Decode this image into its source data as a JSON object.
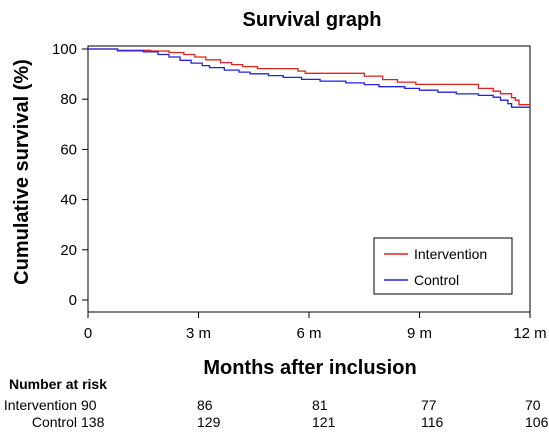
{
  "chart_data": {
    "type": "line",
    "title": "Survival graph",
    "xlabel": "Months after inclusion",
    "ylabel": "Cumulative survival (%)",
    "xlim": [
      0,
      12
    ],
    "ylim": [
      0,
      100
    ],
    "x_ticks": [
      0,
      3,
      6,
      9,
      12
    ],
    "x_tick_labels": [
      "0",
      "3 m",
      "6 m",
      "9 m",
      "12 m"
    ],
    "y_ticks": [
      0,
      20,
      40,
      60,
      80,
      100
    ],
    "y_tick_labels": [
      "0",
      "20",
      "40",
      "60",
      "80",
      "100"
    ],
    "grid": false,
    "legend_position": "bottom-right",
    "step": true,
    "series": [
      {
        "name": "Intervention",
        "color": "#dd2222",
        "points": [
          [
            0,
            100
          ],
          [
            0.7,
            100
          ],
          [
            0.8,
            99.5
          ],
          [
            1.7,
            99.2
          ],
          [
            2.2,
            98.6
          ],
          [
            2.6,
            97.8
          ],
          [
            2.9,
            96.8
          ],
          [
            3.2,
            95.7
          ],
          [
            3.6,
            94.6
          ],
          [
            3.9,
            93.8
          ],
          [
            4.2,
            93.0
          ],
          [
            4.6,
            92.2
          ],
          [
            5.7,
            91.2
          ],
          [
            5.9,
            90.3
          ],
          [
            7.5,
            89.2
          ],
          [
            8.0,
            87.8
          ],
          [
            8.4,
            86.8
          ],
          [
            8.9,
            85.9
          ],
          [
            10.6,
            84.3
          ],
          [
            11.0,
            83.2
          ],
          [
            11.2,
            82.2
          ],
          [
            11.5,
            80.6
          ],
          [
            11.6,
            79.6
          ],
          [
            11.7,
            77.8
          ],
          [
            12,
            77.8
          ]
        ]
      },
      {
        "name": "Control",
        "color": "#2222dd",
        "points": [
          [
            0,
            100
          ],
          [
            0.6,
            100
          ],
          [
            0.8,
            99.3
          ],
          [
            1.5,
            98.9
          ],
          [
            1.9,
            97.8
          ],
          [
            2.2,
            96.8
          ],
          [
            2.5,
            95.5
          ],
          [
            2.8,
            94.4
          ],
          [
            3.1,
            93.4
          ],
          [
            3.3,
            92.6
          ],
          [
            3.7,
            91.6
          ],
          [
            4.1,
            90.8
          ],
          [
            4.4,
            90.1
          ],
          [
            4.9,
            89.4
          ],
          [
            5.3,
            88.7
          ],
          [
            5.8,
            87.9
          ],
          [
            6.3,
            87.2
          ],
          [
            7.0,
            86.5
          ],
          [
            7.5,
            85.8
          ],
          [
            7.9,
            85.0
          ],
          [
            8.6,
            84.3
          ],
          [
            9.0,
            83.6
          ],
          [
            9.5,
            82.8
          ],
          [
            10.0,
            82.1
          ],
          [
            10.6,
            81.5
          ],
          [
            11.0,
            80.8
          ],
          [
            11.2,
            79.6
          ],
          [
            11.4,
            78.2
          ],
          [
            11.5,
            76.8
          ],
          [
            12,
            76.8
          ]
        ]
      }
    ],
    "risk_table": {
      "header": "Number at risk",
      "rows": [
        {
          "label": "Intervention",
          "values": [
            "90",
            "86",
            "81",
            "77",
            "70"
          ]
        },
        {
          "label": "Control",
          "values": [
            "138",
            "129",
            "121",
            "116",
            "106"
          ]
        }
      ]
    }
  }
}
